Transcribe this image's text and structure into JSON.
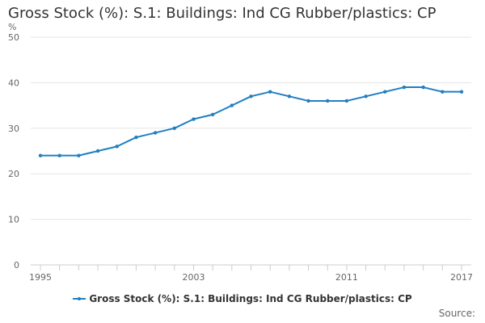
{
  "chart_data": {
    "type": "line",
    "title": "Gross Stock (%): S.1: Buildings: Ind CG Rubber/plastics: CP",
    "ylabel": "%",
    "xlabel": "",
    "ylim": [
      0,
      50
    ],
    "yticks": [
      0,
      10,
      20,
      30,
      40,
      50
    ],
    "xlim": [
      1995,
      2017
    ],
    "xtick_labels": [
      1995,
      2003,
      2011,
      2017
    ],
    "x": [
      1995,
      1996,
      1997,
      1998,
      1999,
      2000,
      2001,
      2002,
      2003,
      2004,
      2005,
      2006,
      2007,
      2008,
      2009,
      2010,
      2011,
      2012,
      2013,
      2014,
      2015,
      2016,
      2017
    ],
    "series": [
      {
        "name": "Gross Stock (%): S.1: Buildings: Ind CG Rubber/plastics: CP",
        "values": [
          24,
          24,
          24,
          25,
          26,
          28,
          29,
          30,
          32,
          33,
          35,
          37,
          38,
          37,
          36,
          36,
          36,
          37,
          38,
          39,
          39,
          38,
          38
        ]
      }
    ],
    "grid": true,
    "legend_position": "bottom",
    "source_label": "Source:",
    "colors": {
      "series": "#1f7fc0",
      "grid": "#e6e6e6",
      "axis": "#cccccc",
      "tick_text": "#666666"
    }
  }
}
